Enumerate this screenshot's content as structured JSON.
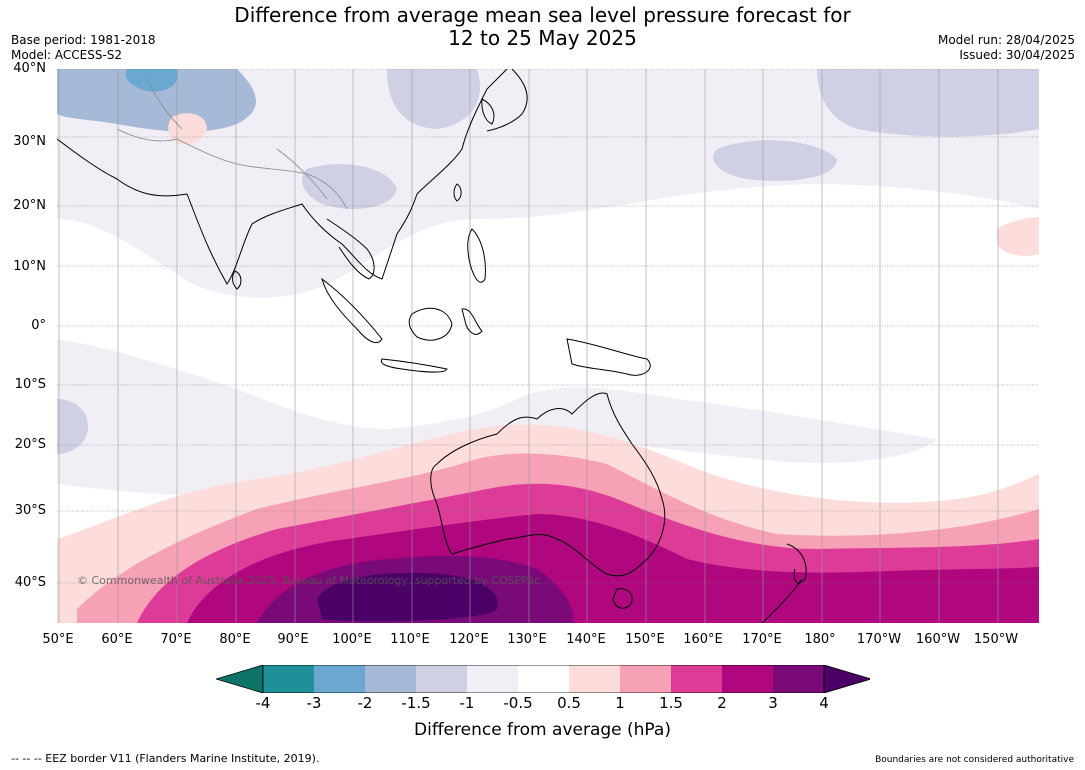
{
  "header": {
    "title_line1": "Difference from average mean sea level pressure forecast for",
    "title_line2": "12 to 25 May 2025",
    "base_period": "Base period: 1981-2018",
    "model": "Model: ACCESS-S2",
    "model_run": "Model run: 28/04/2025",
    "issued": "Issued: 30/04/2025"
  },
  "map": {
    "lat_labels": [
      "40°N",
      "30°N",
      "20°N",
      "10°N",
      "0°",
      "10°S",
      "20°S",
      "30°S",
      "40°S"
    ],
    "lon_labels": [
      "50°E",
      "60°E",
      "70°E",
      "80°E",
      "90°E",
      "100°E",
      "110°E",
      "120°E",
      "130°E",
      "140°E",
      "150°E",
      "160°E",
      "170°E",
      "180°",
      "170°W",
      "160°W",
      "150°W"
    ],
    "copyright": "© Commonwealth of Australia 2025, Bureau of Meteorology, supported by COSPPac"
  },
  "legend": {
    "title": "Difference from average (hPa)",
    "ticks": [
      "-4",
      "-3",
      "-2",
      "-1.5",
      "-1",
      "-0.5",
      "0.5",
      "1",
      "1.5",
      "2",
      "3",
      "4"
    ],
    "colors": [
      "#0e7468",
      "#1f8f9a",
      "#6aa8d0",
      "#a6b9d6",
      "#cfd0e4",
      "#f2eef5",
      "#ffffff",
      "#fddcdc",
      "#f7a1b6",
      "#dc3c97",
      "#b0067e",
      "#7a0a78",
      "#4a0066"
    ]
  },
  "footer": {
    "eez": "-- -- -- EEZ border V11 (Flanders Marine Institute, 2019).",
    "disclaimer": "Boundaries are not considered authoritative"
  }
}
